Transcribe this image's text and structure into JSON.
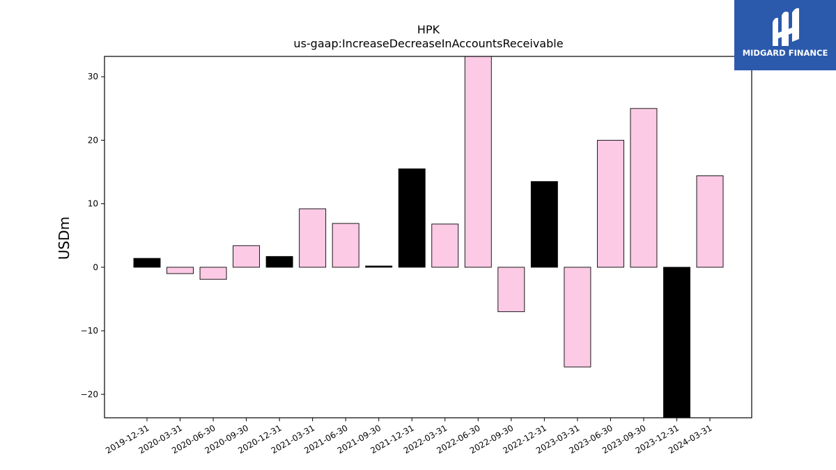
{
  "logo": {
    "name": "MIDGARD FINANCE"
  },
  "chart_data": {
    "type": "bar",
    "title": "HPK",
    "subtitle": "us-gaap:IncreaseDecreaseInAccountsReceivable",
    "xlabel": "",
    "ylabel": "USDm",
    "ylim": [
      -23.7,
      33.2
    ],
    "yticks": [
      -20,
      -10,
      0,
      10,
      20,
      30
    ],
    "ytick_labels": [
      "−20",
      "−10",
      "0",
      "10",
      "20",
      "30"
    ],
    "grid": false,
    "categories": [
      "2019-12-31",
      "2020-03-31",
      "2020-06-30",
      "2020-09-30",
      "2020-12-31",
      "2021-03-31",
      "2021-06-30",
      "2021-09-30",
      "2021-12-31",
      "2022-03-31",
      "2022-06-30",
      "2022-09-30",
      "2022-12-31",
      "2023-03-31",
      "2023-06-30",
      "2023-09-30",
      "2023-12-31",
      "2024-03-31"
    ],
    "values": [
      1.4,
      -1.0,
      -1.9,
      3.4,
      1.7,
      9.2,
      6.9,
      0.2,
      15.5,
      6.8,
      33.5,
      -7.0,
      13.5,
      -15.7,
      20.0,
      25.0,
      -24.0,
      14.4
    ],
    "colors": [
      "#000000",
      "#fccae5",
      "#fccae5",
      "#fccae5",
      "#000000",
      "#fccae5",
      "#fccae5",
      "#000000",
      "#000000",
      "#fccae5",
      "#fccae5",
      "#fccae5",
      "#000000",
      "#fccae5",
      "#fccae5",
      "#fccae5",
      "#000000",
      "#fccae5"
    ]
  }
}
